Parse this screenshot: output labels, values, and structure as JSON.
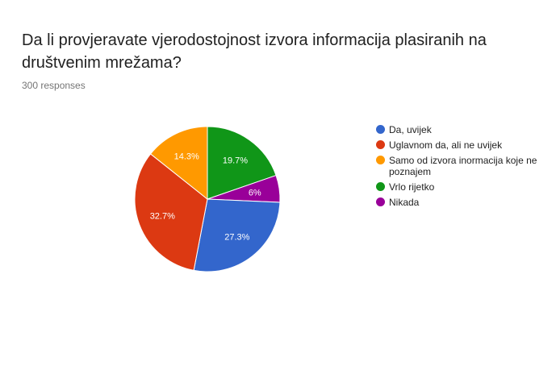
{
  "question": {
    "title": "Da li provjeravate vjerodostojnost izvora informacija plasiranih na društvenim mrežama?",
    "responses": "300 responses"
  },
  "chart_data": {
    "type": "pie",
    "title": "Da li provjeravate vjerodostojnost izvora informacija plasiranih na društvenim mrežama?",
    "total_responses": 300,
    "legend_position": "right",
    "slices": [
      {
        "label": "Da, uvijek",
        "value": 27.3,
        "display": "27.3%",
        "color": "#3366cc"
      },
      {
        "label": "Uglavnom da, ali ne uvijek",
        "value": 32.7,
        "display": "32.7%",
        "color": "#dc3912"
      },
      {
        "label": "Samo od izvora inormacija koje ne poznajem",
        "value": 14.3,
        "display": "14.3%",
        "color": "#ff9900"
      },
      {
        "label": "Vrlo rijetko",
        "value": 19.7,
        "display": "19.7%",
        "color": "#109618"
      },
      {
        "label": "Nikada",
        "value": 6,
        "display": "6%",
        "color": "#990099"
      }
    ]
  }
}
